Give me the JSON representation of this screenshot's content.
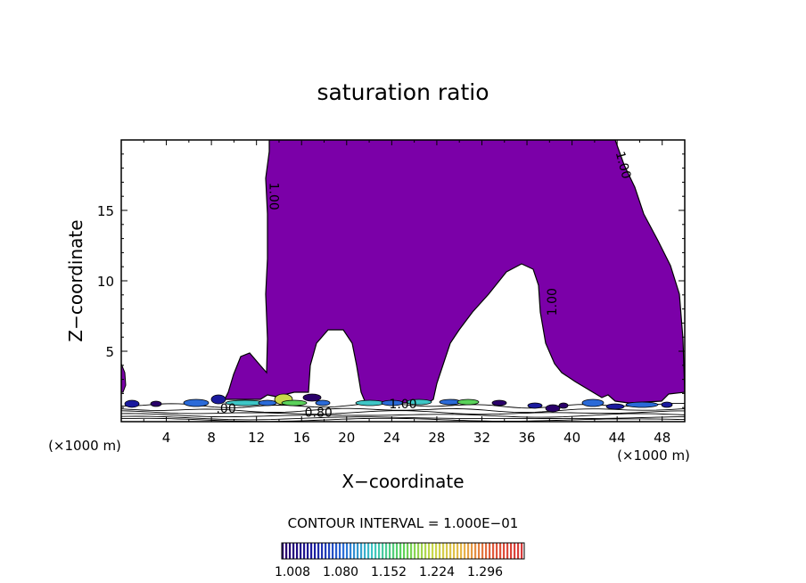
{
  "chart_data": {
    "type": "heatmap",
    "title": "saturation ratio",
    "xlabel": "X−coordinate",
    "ylabel": "Z−coordinate",
    "x_unit_label": "(×1000 m)",
    "xlim": [
      0,
      50
    ],
    "ylim": [
      0,
      20
    ],
    "x_ticks": [
      4,
      8,
      12,
      16,
      20,
      24,
      28,
      32,
      36,
      40,
      44,
      48
    ],
    "y_ticks": [
      5,
      10,
      15
    ],
    "contour_labels": [
      {
        "text": "1.00",
        "x": 13.5,
        "z": 16.0,
        "rotate": 90
      },
      {
        "text": "1.00",
        "x": 44.5,
        "z": 18.2,
        "rotate": 75
      },
      {
        "text": "1.00",
        "x": 38.3,
        "z": 8.5,
        "rotate": -90
      },
      {
        "text": "0.80",
        "x": 17.5,
        "z": 0.6,
        "rotate": 0
      },
      {
        "text": "1.00",
        "x": 25.0,
        "z": 1.2,
        "rotate": 0
      },
      {
        "text": ".00",
        "x": 9.3,
        "z": 0.9,
        "rotate": 0
      }
    ],
    "contour_interval_text": "CONTOUR INTERVAL = 1.000E−01",
    "colorbar": {
      "ticks": [
        "1.008",
        "1.080",
        "1.152",
        "1.224",
        "1.296"
      ],
      "min": 1.0,
      "max": 1.33,
      "stops": [
        "#2a006a",
        "#1a1a9e",
        "#2a6ad8",
        "#3ec6c6",
        "#5ad25a",
        "#c8d84a",
        "#e8b84a",
        "#e05a3a",
        "#d83a3a"
      ]
    },
    "fill_color": "#7b00a8",
    "line_color": "#000000"
  }
}
